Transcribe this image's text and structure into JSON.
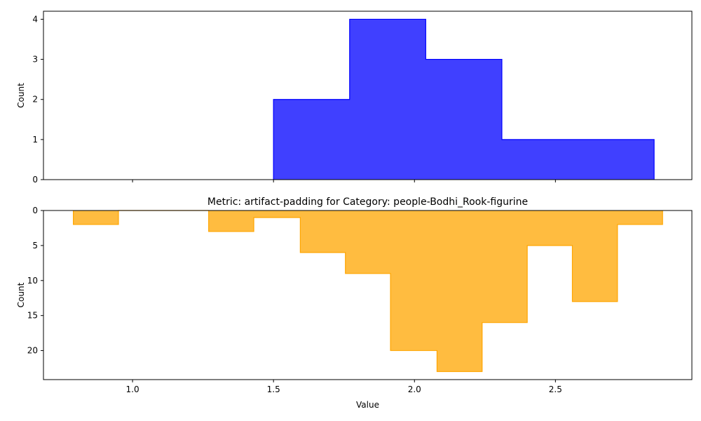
{
  "colors": {
    "top_fill": "#0000ff",
    "top_edge": "#0000ff",
    "bottom_fill": "#ffa500",
    "bottom_edge": "#ffa500",
    "background": "#ffffff",
    "axis": "#000000"
  },
  "chart_data": [
    {
      "type": "histogram",
      "title": "",
      "xlabel": "",
      "ylabel": "Count",
      "xlim": [
        0.684,
        2.984
      ],
      "ylim": [
        0,
        4.2
      ],
      "inverted_y": false,
      "bin_edges": [
        1.5,
        1.77,
        2.04,
        2.31,
        2.58,
        2.85
      ],
      "counts": [
        2,
        4,
        3,
        1,
        1
      ],
      "yticks": [
        0,
        1,
        2,
        3,
        4
      ],
      "ytick_labels": [
        "0",
        "1",
        "2",
        "3",
        "4"
      ],
      "xticks": [
        1.0,
        1.5,
        2.0,
        2.5
      ],
      "xtick_labels": [
        "",
        "",
        "",
        ""
      ],
      "grid": false
    },
    {
      "type": "histogram",
      "title": "Metric: artifact-padding for Category: people-Bodhi_Rook-figurine",
      "xlabel": "Value",
      "ylabel": "Count",
      "xlim": [
        0.684,
        2.984
      ],
      "ylim": [
        0,
        24.15
      ],
      "inverted_y": true,
      "bin_edges": [
        0.79,
        0.95,
        1.11,
        1.27,
        1.43,
        1.595,
        1.755,
        1.915,
        2.08,
        2.24,
        2.4,
        2.56,
        2.72,
        2.88
      ],
      "counts": [
        2,
        0,
        0,
        3,
        1,
        6,
        9,
        20,
        23,
        16,
        5,
        13,
        2
      ],
      "yticks": [
        0,
        5,
        10,
        15,
        20
      ],
      "ytick_labels": [
        "0",
        "5",
        "10",
        "15",
        "20"
      ],
      "xticks": [
        1.0,
        1.5,
        2.0,
        2.5
      ],
      "xtick_labels": [
        "1.0",
        "1.5",
        "2.0",
        "2.5"
      ],
      "grid": false
    }
  ]
}
